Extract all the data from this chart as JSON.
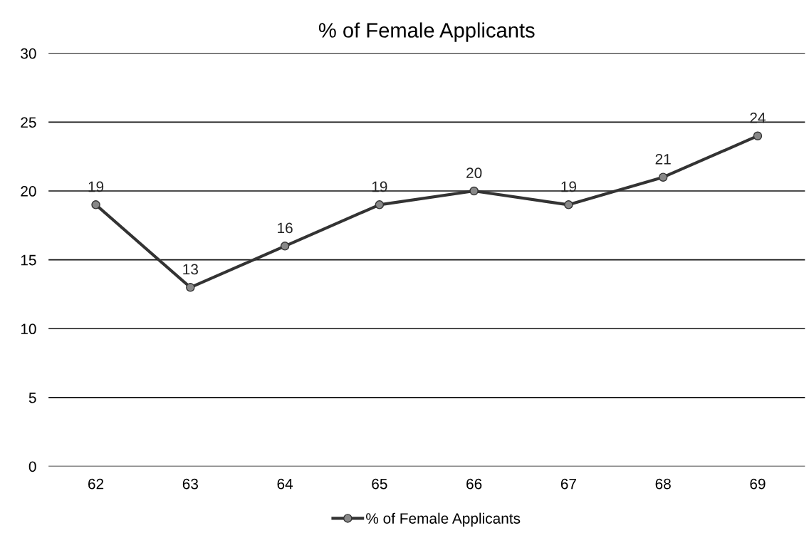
{
  "chart_data": {
    "type": "line",
    "title": "% of Female Applicants",
    "categories": [
      "62",
      "63",
      "64",
      "65",
      "66",
      "67",
      "68",
      "69"
    ],
    "series": [
      {
        "name": "% of Female Applicants",
        "color": "#333333",
        "values": [
          19,
          13,
          16,
          19,
          20,
          19,
          21,
          24
        ]
      }
    ],
    "ylim": [
      0,
      30
    ],
    "yticks": [
      0,
      5,
      10,
      15,
      20,
      25,
      30
    ],
    "grid": "y",
    "legend": "bottom",
    "marker": "circle",
    "data_labels": true
  }
}
